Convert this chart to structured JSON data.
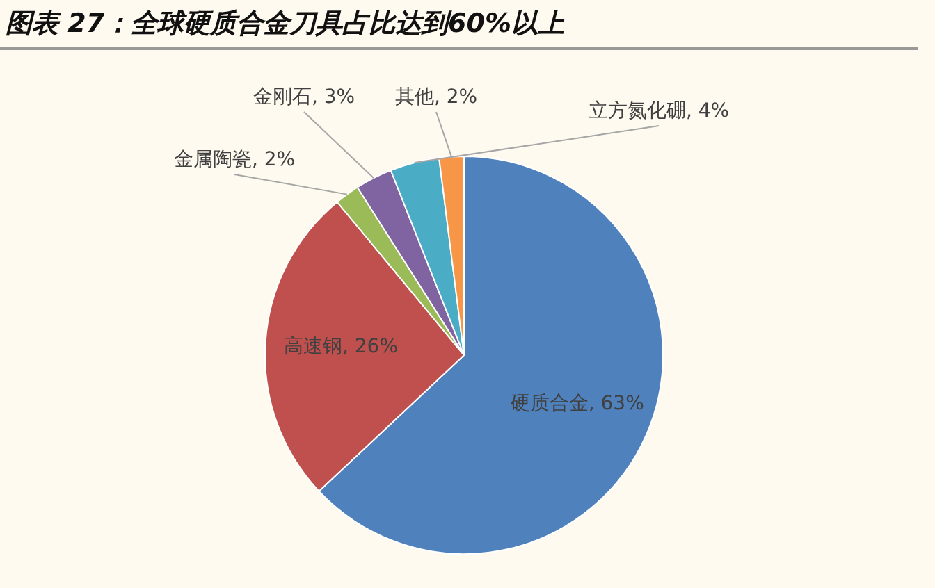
{
  "chart_data": {
    "type": "pie",
    "title": "图表 27：全球硬质合金刀具占比达到60%以上",
    "categories": [
      "硬质合金",
      "高速钢",
      "金属陶瓷",
      "金刚石",
      "立方氮化硼",
      "其他"
    ],
    "values": [
      63,
      26,
      2,
      3,
      4,
      2
    ],
    "value_labels": [
      "63%",
      "26%",
      "2%",
      "3%",
      "4%",
      "2%"
    ],
    "colors": [
      "#4f81bd",
      "#c0504d",
      "#9bbb59",
      "#8064a2",
      "#4bacc6",
      "#f79646"
    ],
    "legend": false
  }
}
